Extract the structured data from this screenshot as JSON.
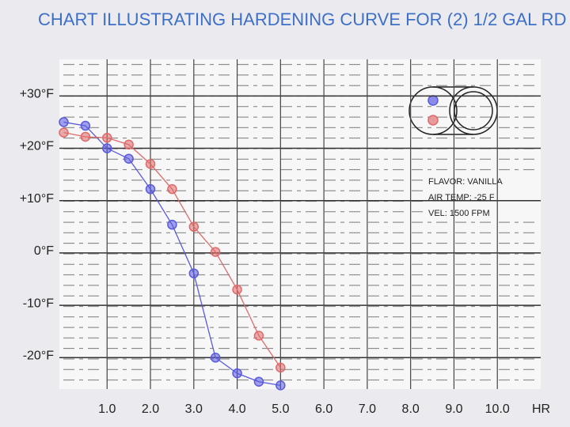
{
  "chart_data": {
    "type": "line",
    "title": "CHART ILLUSTRATING HARDENING CURVE FOR (2) 1/2 GAL RD",
    "x_label": "HR",
    "annotations": [
      "FLAVOR: VANILLA",
      "AIR TEMP:  -25 F",
      "VEL:  1500 FPM"
    ],
    "x": [
      0,
      0.5,
      1,
      1.5,
      2,
      2.5,
      3,
      3.5,
      4,
      4.5,
      5
    ],
    "series": [
      {
        "color": "#5a5ae0",
        "values": [
          25,
          24.3,
          20,
          18,
          12.2,
          5.4,
          -3.9,
          -20,
          -23,
          -24.6,
          -25.3
        ]
      },
      {
        "color": "#e06a6a",
        "values": [
          23,
          22.2,
          22,
          20.7,
          17,
          12.2,
          5,
          0.2,
          -7,
          -15.8,
          -21.9
        ]
      }
    ],
    "xlim": [
      -0.1,
      11
    ],
    "ylim": [
      -26,
      37
    ],
    "xticks": [
      {
        "value": 1,
        "label": "1.0"
      },
      {
        "value": 2,
        "label": "2.0"
      },
      {
        "value": 3,
        "label": "3.0"
      },
      {
        "value": 4,
        "label": "4.0"
      },
      {
        "value": 5,
        "label": "5.0"
      },
      {
        "value": 6,
        "label": "6.0"
      },
      {
        "value": 7,
        "label": "7.0"
      },
      {
        "value": 8,
        "label": "8.0"
      },
      {
        "value": 9,
        "label": "9.0"
      },
      {
        "value": 10,
        "label": "10.0"
      }
    ],
    "yticks": [
      {
        "value": -20,
        "label": "-20°F"
      },
      {
        "value": -10,
        "label": "-10°F"
      },
      {
        "value": 0,
        "label": "0°F"
      },
      {
        "value": 10,
        "label": "+10°F"
      },
      {
        "value": 20,
        "label": "+20°F"
      },
      {
        "value": 30,
        "label": "+30°F"
      }
    ],
    "grid": true
  }
}
